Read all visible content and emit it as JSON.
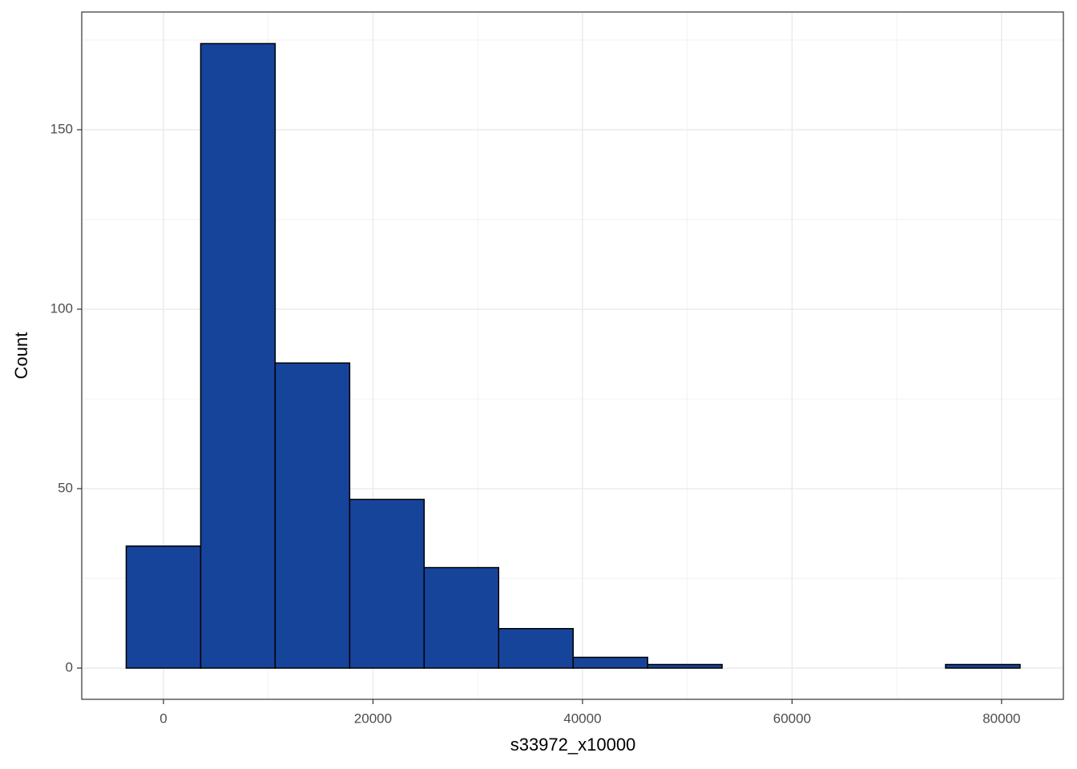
{
  "chart_data": {
    "type": "histogram",
    "x_label": "s33972_x10000",
    "y_label": "Count",
    "bins": [
      -3555,
      3555,
      10665,
      17775,
      24885,
      31995,
      39105,
      46215,
      53325,
      60435,
      67545,
      74655,
      81765
    ],
    "values": [
      34,
      174,
      85,
      47,
      28,
      11,
      3,
      1,
      0,
      0,
      0,
      1
    ],
    "color": "#17449b",
    "edge_color": "#000000",
    "xlim": [
      -7800,
      85900
    ],
    "ylim": [
      -8.7,
      182.8
    ],
    "xticks": [
      0,
      20000,
      40000,
      60000,
      80000
    ],
    "yticks": [
      0,
      50,
      100,
      150
    ],
    "x_minor_ticks": [
      10000,
      30000,
      50000,
      70000
    ],
    "y_minor_ticks": [
      25,
      75,
      125,
      175
    ],
    "grid": true
  }
}
